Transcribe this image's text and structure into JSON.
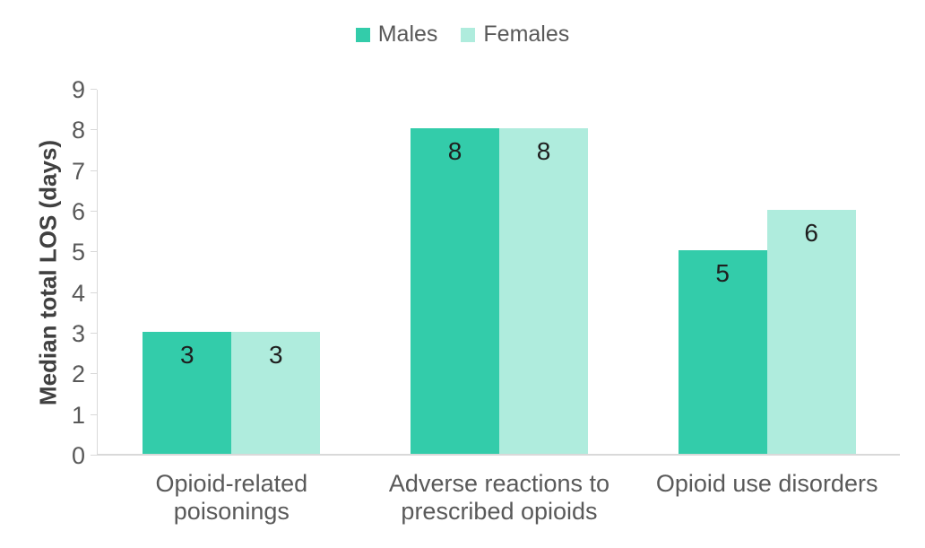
{
  "legend": {
    "items": [
      {
        "label": "Males",
        "color": "#33CCAA"
      },
      {
        "label": "Females",
        "color": "#AFECDD"
      }
    ]
  },
  "chart_data": {
    "type": "bar",
    "title": "",
    "categories": [
      "Opioid-related poisonings",
      "Adverse reactions to prescribed opioids",
      "Opioid use disorders"
    ],
    "series": [
      {
        "name": "Males",
        "color": "#33CCAA",
        "values": [
          3,
          8,
          5
        ]
      },
      {
        "name": "Females",
        "color": "#AFECDD",
        "values": [
          3,
          8,
          6
        ]
      }
    ],
    "data_labels": [
      [
        "3",
        "8",
        "5"
      ],
      [
        "3",
        "8",
        "6"
      ]
    ],
    "xlabel": "",
    "ylabel": "Median total LOS (days)",
    "ylim": [
      0,
      9
    ],
    "ytick_step": 1,
    "ytick_labels": [
      "0",
      "1",
      "2",
      "3",
      "4",
      "5",
      "6",
      "7",
      "8",
      "9"
    ],
    "grid": false,
    "legend_position": "top",
    "axis_color": "#D9D9D9",
    "tick_label_color": "#595959",
    "data_label_color": "#1f1f1f"
  }
}
